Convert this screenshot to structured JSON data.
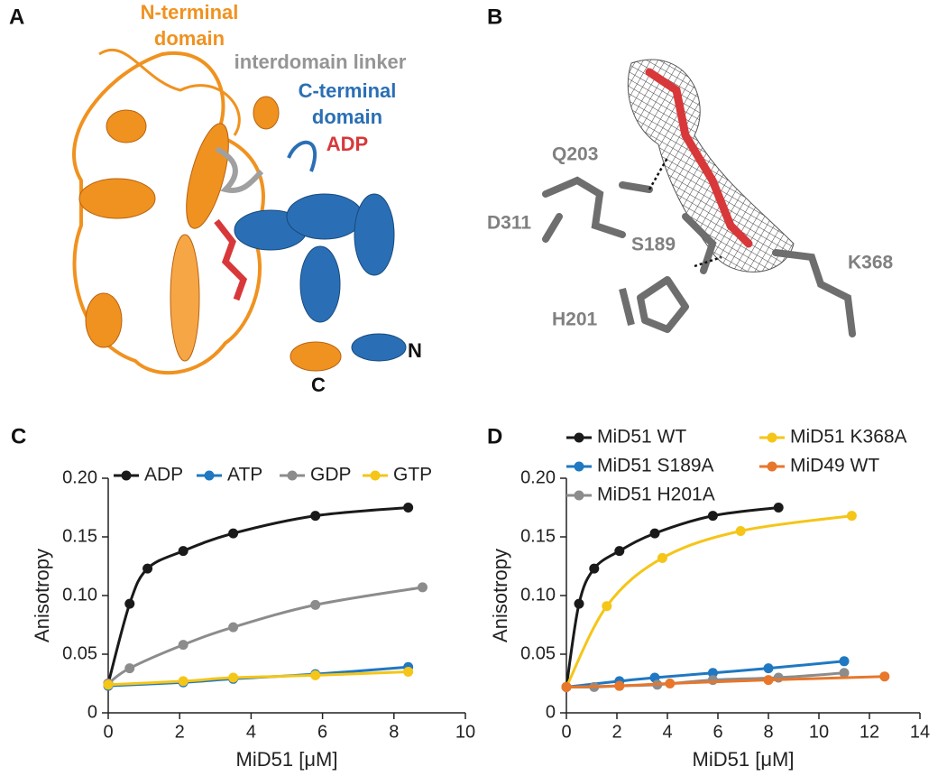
{
  "panels": {
    "a": {
      "label": "A",
      "n_domain": [
        "N-terminal",
        "domain"
      ],
      "linker": "interdomain linker",
      "c_domain": [
        "C-terminal",
        "domain"
      ],
      "ligand": "ADP",
      "n_term": "N",
      "c_term": "C"
    },
    "b": {
      "label": "B",
      "residues": [
        "Q203",
        "D311",
        "S189",
        "K368",
        "H201"
      ]
    }
  },
  "chart_data": [
    {
      "type": "line",
      "panel": "C",
      "xlabel": "MiD51 [μM]",
      "ylabel": "Anisotropy",
      "xlim": [
        0,
        10
      ],
      "xticks": [
        0,
        2,
        4,
        6,
        8,
        10
      ],
      "ylim": [
        0,
        0.2
      ],
      "yticks": [
        0,
        0.05,
        {
          "value": 0.1,
          "label": "0.10"
        },
        0.15,
        {
          "value": 0.2,
          "label": "0.20"
        }
      ],
      "legend": "top",
      "legend_rows": 1,
      "markers": true,
      "series": [
        {
          "name": "ADP",
          "color": "#1a1a1a",
          "x": [
            0,
            0.6,
            1.1,
            2.1,
            3.5,
            5.8,
            8.4
          ],
          "values": [
            0.025,
            0.093,
            0.123,
            0.138,
            0.153,
            0.168,
            0.175
          ]
        },
        {
          "name": "ATP",
          "color": "#1f78c1",
          "x": [
            0,
            2.1,
            3.5,
            5.8,
            8.4
          ],
          "values": [
            0.023,
            0.026,
            0.029,
            0.033,
            0.039
          ]
        },
        {
          "name": "GDP",
          "color": "#8c8c8c",
          "x": [
            0,
            0.6,
            2.1,
            3.5,
            5.8,
            8.8
          ],
          "values": [
            0.025,
            0.038,
            0.058,
            0.073,
            0.092,
            0.107
          ]
        },
        {
          "name": "GTP",
          "color": "#f5c518",
          "x": [
            0,
            2.1,
            3.5,
            5.8,
            8.4
          ],
          "values": [
            0.024,
            0.027,
            0.03,
            0.032,
            0.035
          ]
        }
      ]
    },
    {
      "type": "line",
      "panel": "D",
      "xlabel": "MiD51 [μM]",
      "ylabel": "Anisotropy",
      "xlim": [
        0,
        14
      ],
      "xticks": [
        0,
        2,
        4,
        6,
        8,
        10,
        12,
        14
      ],
      "ylim": [
        0,
        0.2
      ],
      "yticks": [
        0,
        0.05,
        {
          "value": 0.1,
          "label": "0.10"
        },
        0.15,
        {
          "value": 0.2,
          "label": "0.20"
        }
      ],
      "legend": "top",
      "legend_rows": 3,
      "markers": true,
      "series": [
        {
          "name": "MiD51 WT",
          "color": "#1a1a1a",
          "x": [
            0,
            0.5,
            1.1,
            2.1,
            3.5,
            5.8,
            8.4
          ],
          "values": [
            0.022,
            0.093,
            0.123,
            0.138,
            0.153,
            0.168,
            0.175
          ]
        },
        {
          "name": "MiD51 S189A",
          "color": "#1f78c1",
          "x": [
            0,
            2.1,
            3.5,
            5.8,
            8,
            11
          ],
          "values": [
            0.022,
            0.027,
            0.03,
            0.034,
            0.038,
            0.044
          ]
        },
        {
          "name": "MiD51 H201A",
          "color": "#8c8c8c",
          "x": [
            0,
            1.1,
            2.1,
            3.6,
            5.8,
            8.4,
            11
          ],
          "values": [
            0.022,
            0.022,
            0.023,
            0.024,
            0.028,
            0.03,
            0.034
          ]
        },
        {
          "name": "MiD51 K368A",
          "color": "#f5c518",
          "x": [
            0,
            1.6,
            3.8,
            6.9,
            11.3
          ],
          "values": [
            0.022,
            0.091,
            0.132,
            0.155,
            0.168
          ]
        },
        {
          "name": "MiD49 WT",
          "color": "#e8762b",
          "x": [
            0,
            2.1,
            4.1,
            8,
            12.6
          ],
          "values": [
            0.022,
            0.023,
            0.025,
            0.028,
            0.031
          ]
        }
      ]
    }
  ]
}
